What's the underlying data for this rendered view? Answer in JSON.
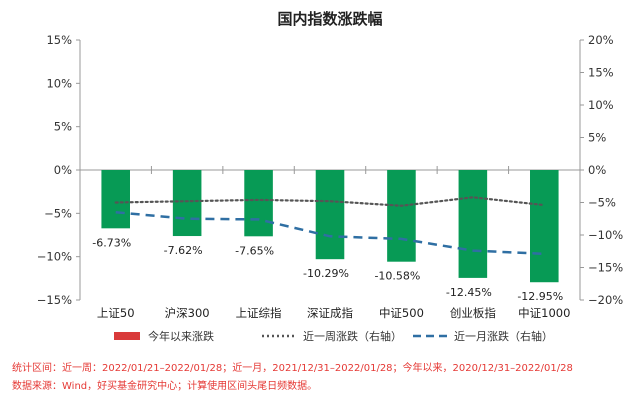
{
  "chart_data": {
    "type": "bar",
    "title": "国内指数涨跌幅",
    "categories": [
      "上证50",
      "沪深300",
      "上证综指",
      "深证成指",
      "中证500",
      "创业板指",
      "中证1000"
    ],
    "series": [
      {
        "name": "今年以来涨跌",
        "type": "bar",
        "axis": "left",
        "color": "#079a55",
        "values": [
          -6.73,
          -7.62,
          -7.65,
          -10.29,
          -10.58,
          -12.45,
          -12.95
        ],
        "labels": [
          "-6.73%",
          "-7.62%",
          "-7.65%",
          "-10.29%",
          "-10.58%",
          "-12.45%",
          "-12.95%"
        ]
      },
      {
        "name": "近一周涨跌（右轴）",
        "type": "line",
        "style": "dotted",
        "axis": "right",
        "color": "#555555",
        "values": [
          -5.0,
          -4.8,
          -4.6,
          -4.8,
          -5.5,
          -4.2,
          -5.4
        ]
      },
      {
        "name": "近一月涨跌（右轴）",
        "type": "line",
        "style": "dashed",
        "axis": "right",
        "color": "#2f6fa3",
        "values": [
          -6.5,
          -7.5,
          -7.6,
          -10.2,
          -10.6,
          -12.4,
          -12.9
        ]
      }
    ],
    "left_axis": {
      "ylim": [
        -15,
        15
      ],
      "ticks": [
        -15,
        -10,
        -5,
        0,
        5,
        10,
        15
      ],
      "tick_labels": [
        "−15%",
        "−10%",
        "−5%",
        "0%",
        "5%",
        "10%",
        "15%"
      ]
    },
    "right_axis": {
      "ylim": [
        -20,
        20
      ],
      "ticks": [
        -20,
        -15,
        -10,
        -5,
        0,
        5,
        10,
        15,
        20
      ],
      "tick_labels": [
        "−20%",
        "−15%",
        "−10%",
        "−5%",
        "0%",
        "5%",
        "10%",
        "15%",
        "20%"
      ]
    },
    "legend_position": "bottom",
    "grid": false,
    "xlabel": "",
    "ylabel": ""
  },
  "legend_labels": {
    "bar": "今年以来涨跌",
    "week": "近一周涨跌（右轴）",
    "month": "近一月涨跌（右轴）"
  },
  "legend_colors": {
    "bar": "#d93a3a",
    "week": "#555555",
    "month": "#2f6fa3"
  },
  "notes": {
    "stat_range": "统计区间：近一周：2022/01/21–2022/01/28；近一月，2021/12/31–2022/01/28；今年以来，2020/12/31–2022/01/28",
    "source": "数据来源：Wind，好买基金研究中心；计算使用区间头尾日频数据。"
  }
}
